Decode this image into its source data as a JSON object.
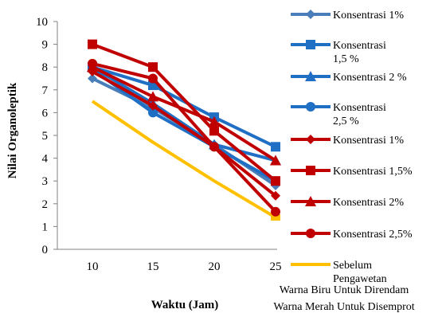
{
  "chart_data": {
    "type": "line",
    "title": "",
    "xlabel": "Waktu (Jam)",
    "ylabel": "Nilai Organoleptik",
    "x": [
      10,
      15,
      20,
      25
    ],
    "ylim": [
      0,
      10
    ],
    "yticks": [
      0,
      1,
      2,
      3,
      4,
      5,
      6,
      7,
      8,
      9,
      10
    ],
    "grid": false,
    "legend_position": "right",
    "series": [
      {
        "name": "Konsentrasi 1%",
        "values": [
          7.5,
          6.2,
          4.6,
          2.8
        ],
        "color": "#4a7ebb",
        "marker": "diamond"
      },
      {
        "name": "Konsentrasi 1,5 %",
        "values": [
          8.0,
          7.2,
          5.8,
          4.5
        ],
        "color": "#1f6fc5",
        "marker": "square"
      },
      {
        "name": "Konsentrasi 2 %",
        "values": [
          8.0,
          6.4,
          4.6,
          3.9
        ],
        "color": "#1f6fc5",
        "marker": "triangle"
      },
      {
        "name": "Konsentrasi 2,5 %",
        "values": [
          7.9,
          6.0,
          4.5,
          3.0
        ],
        "color": "#1f6fc5",
        "marker": "circle"
      },
      {
        "name": "Konsentrasi 1%",
        "values": [
          7.8,
          6.3,
          4.5,
          2.35
        ],
        "color": "#c00000",
        "marker": "diamond"
      },
      {
        "name": "Konsentrasi 1,5%",
        "values": [
          9.0,
          8.0,
          5.2,
          3.0
        ],
        "color": "#c00000",
        "marker": "square"
      },
      {
        "name": "Konsentrasi 2%",
        "values": [
          8.0,
          6.7,
          5.6,
          3.9
        ],
        "color": "#c00000",
        "marker": "triangle"
      },
      {
        "name": "Konsentrasi 2,5%",
        "values": [
          8.15,
          7.5,
          4.5,
          1.65
        ],
        "color": "#c00000",
        "marker": "circle"
      },
      {
        "name": "Sebelum Pengawetan",
        "values": [
          6.5,
          4.7,
          3.0,
          1.4
        ],
        "color": "#ffc000",
        "marker": "none"
      }
    ],
    "notes": [
      "Warna Biru Untuk Direndam",
      "Warna Merah Untuk Disemprot"
    ]
  }
}
